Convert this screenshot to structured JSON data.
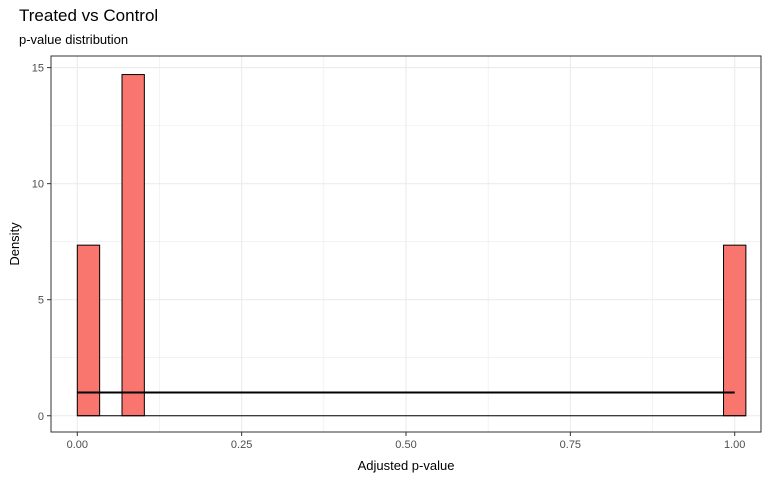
{
  "chart_data": {
    "type": "bar",
    "title": "Treated vs Control",
    "subtitle": "p-value distribution",
    "xlabel": "Adjusted p-value",
    "ylabel": "Density",
    "xlim": [
      -0.04,
      1.04
    ],
    "ylim": [
      -0.7,
      15.5
    ],
    "x_ticks": [
      0,
      0.25,
      0.5,
      0.75,
      1
    ],
    "x_tick_labels": [
      "0.00",
      "0.25",
      "0.50",
      "0.75",
      "1.00"
    ],
    "y_ticks": [
      0,
      5,
      10,
      15
    ],
    "y_tick_labels": [
      "0",
      "5",
      "10",
      "15"
    ],
    "grid": true,
    "bars": [
      {
        "x0": 0.0,
        "x1": 0.034,
        "value": 7.35
      },
      {
        "x0": 0.068,
        "x1": 0.102,
        "value": 14.7
      },
      {
        "x0": 0.983,
        "x1": 1.017,
        "value": 7.35
      }
    ],
    "reference_line": {
      "x0": 0.0,
      "x1": 1.0,
      "value": 1.0
    },
    "colors": {
      "bar_fill": "#F8766D",
      "bar_stroke": "#000000",
      "grid": "#ebebeb",
      "panel_border": "#333333",
      "line": "#000000"
    }
  }
}
